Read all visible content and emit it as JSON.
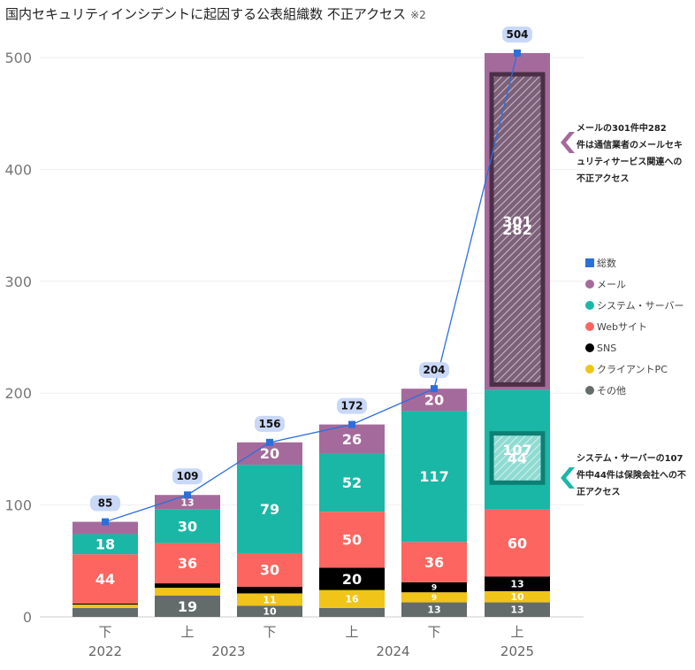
{
  "chart_data": {
    "type": "bar",
    "title": "国内セキュリティインシデントに起因する公表組織数 不正アクセス",
    "title_note": "※2",
    "y_ticks": [
      "0",
      "100",
      "200",
      "300",
      "400",
      "500"
    ],
    "ylim": [
      0,
      520
    ],
    "grid": true,
    "legend_position": "right",
    "categories": [
      "下",
      "上",
      "下",
      "上",
      "下",
      "上"
    ],
    "years": [
      "2022",
      "2023",
      "2024",
      "2025"
    ],
    "series": [
      {
        "name": "その他",
        "color": "#636b6b",
        "values": [
          8,
          19,
          10,
          8,
          13,
          13
        ],
        "labels": [
          "",
          "19",
          "10",
          "",
          "13",
          "13"
        ]
      },
      {
        "name": "クライアントPC",
        "color": "#f0c419",
        "values": [
          3,
          7,
          11,
          16,
          9,
          10
        ],
        "labels": [
          "",
          "",
          "11",
          "16",
          "9",
          "10"
        ]
      },
      {
        "name": "SNS",
        "color": "#000000",
        "values": [
          1,
          4,
          6,
          20,
          9,
          13
        ],
        "labels": [
          "",
          "",
          "",
          "20",
          "9",
          "13"
        ]
      },
      {
        "name": "Webサイト",
        "color": "#fc6560",
        "values": [
          44,
          36,
          30,
          50,
          36,
          60
        ],
        "labels": [
          "44",
          "36",
          "30",
          "50",
          "36",
          "60"
        ]
      },
      {
        "name": "システム・サーバー",
        "color": "#1ab7a6",
        "values": [
          18,
          30,
          79,
          52,
          117,
          107
        ],
        "labels": [
          "18",
          "30",
          "79",
          "52",
          "117",
          "107"
        ]
      },
      {
        "name": "メール",
        "color": "#a56a9c",
        "values": [
          11,
          13,
          20,
          26,
          20,
          301
        ],
        "labels": [
          "",
          "13",
          "20",
          "26",
          "20",
          "301"
        ]
      }
    ],
    "totals": {
      "name": "総数",
      "color": "#2b6fdb",
      "values": [
        85,
        109,
        156,
        172,
        204,
        504
      ]
    },
    "highlights": [
      {
        "series": "メール",
        "value": 282,
        "label": "282",
        "text": "メールの301件中282件は通信業者のメールセキュリティサービス関連への不正アクセス"
      },
      {
        "series": "システム・サーバー",
        "value": 44,
        "label": "44",
        "text": "システム・サーバーの107件中44件は保険会社への不正アクセス"
      }
    ]
  }
}
